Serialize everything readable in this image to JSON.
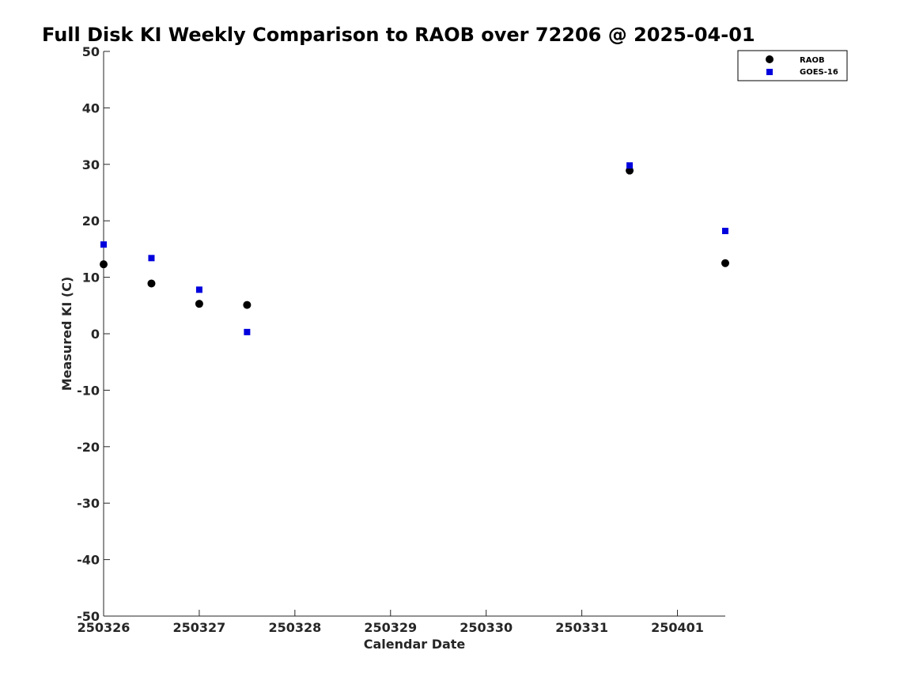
{
  "chart_data": {
    "type": "scatter",
    "title": "Full Disk KI Weekly Comparison to RAOB over 72206 @ 2025-04-01",
    "xlabel": "Calendar Date",
    "ylabel": "Measured KI (C)",
    "x_tick_labels": [
      "250326",
      "250327",
      "250328",
      "250329",
      "250330",
      "250331",
      "250401"
    ],
    "y_ticks": [
      50,
      40,
      30,
      20,
      10,
      0,
      -10,
      -20,
      -30,
      -40,
      -50
    ],
    "xlim": [
      "2025-03-26T00:00",
      "2025-04-01T12:00"
    ],
    "ylim": [
      -50,
      50
    ],
    "grid": false,
    "legend_position": "top-right",
    "series": [
      {
        "name": "RAOB",
        "marker": "circle",
        "color": "#000000",
        "x": [
          "2025-03-26T00:00",
          "2025-03-26T12:00",
          "2025-03-27T00:00",
          "2025-03-27T12:00",
          "2025-03-31T12:00",
          "2025-04-01T12:00"
        ],
        "y": [
          12.3,
          8.9,
          5.3,
          5.1,
          28.9,
          12.5
        ]
      },
      {
        "name": "GOES-16",
        "marker": "square",
        "color": "#0000dd",
        "x": [
          "2025-03-26T00:00",
          "2025-03-26T12:00",
          "2025-03-27T00:00",
          "2025-03-27T12:00",
          "2025-03-31T12:00",
          "2025-04-01T12:00"
        ],
        "y": [
          15.8,
          13.4,
          7.8,
          0.3,
          29.8,
          18.2
        ]
      }
    ]
  }
}
